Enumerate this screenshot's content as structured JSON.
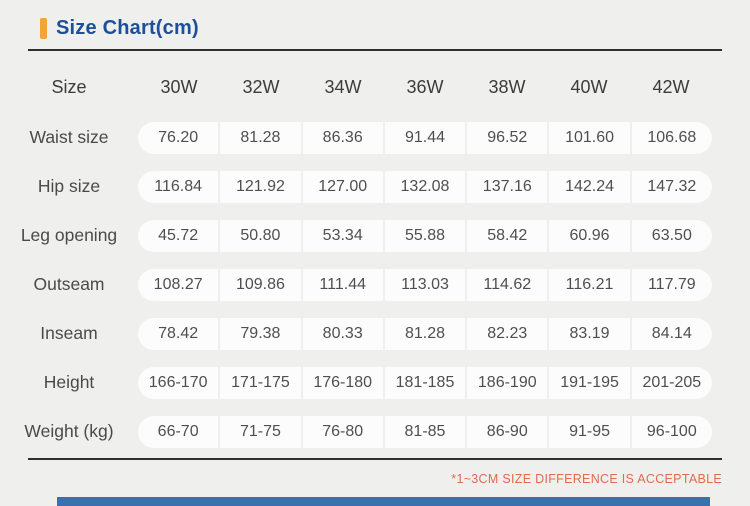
{
  "title": "Size Chart(cm)",
  "note": "*1~3CM SIZE DIFFERENCE IS ACCEPTABLE",
  "colors": {
    "page_bg": "#efefed",
    "accent_orange": "#f2a438",
    "title_blue": "#1d4f9a",
    "divider_dark": "#2f2f2f",
    "cell_bg": "#fcfcfc",
    "label_text": "#4a4a4a",
    "value_text": "#4f4f4f",
    "note_orange": "#e26a50",
    "bar_blue": "#3a70ab"
  },
  "table": {
    "header_label": "Size",
    "columns": [
      "30W",
      "32W",
      "34W",
      "36W",
      "38W",
      "40W",
      "42W"
    ],
    "rows": [
      {
        "label": "Waist size",
        "values": [
          "76.20",
          "81.28",
          "86.36",
          "91.44",
          "96.52",
          "101.60",
          "106.68"
        ]
      },
      {
        "label": "Hip size",
        "values": [
          "116.84",
          "121.92",
          "127.00",
          "132.08",
          "137.16",
          "142.24",
          "147.32"
        ]
      },
      {
        "label": "Leg opening",
        "values": [
          "45.72",
          "50.80",
          "53.34",
          "55.88",
          "58.42",
          "60.96",
          "63.50"
        ]
      },
      {
        "label": "Outseam",
        "values": [
          "108.27",
          "109.86",
          "111.44",
          "113.03",
          "114.62",
          "116.21",
          "117.79"
        ]
      },
      {
        "label": "Inseam",
        "values": [
          "78.42",
          "79.38",
          "80.33",
          "81.28",
          "82.23",
          "83.19",
          "84.14"
        ]
      },
      {
        "label": "Height",
        "values": [
          "166-170",
          "171-175",
          "176-180",
          "181-185",
          "186-190",
          "191-195",
          "201-205"
        ]
      },
      {
        "label": "Weight (kg)",
        "values": [
          "66-70",
          "71-75",
          "76-80",
          "81-85",
          "86-90",
          "91-95",
          "96-100"
        ]
      }
    ]
  }
}
